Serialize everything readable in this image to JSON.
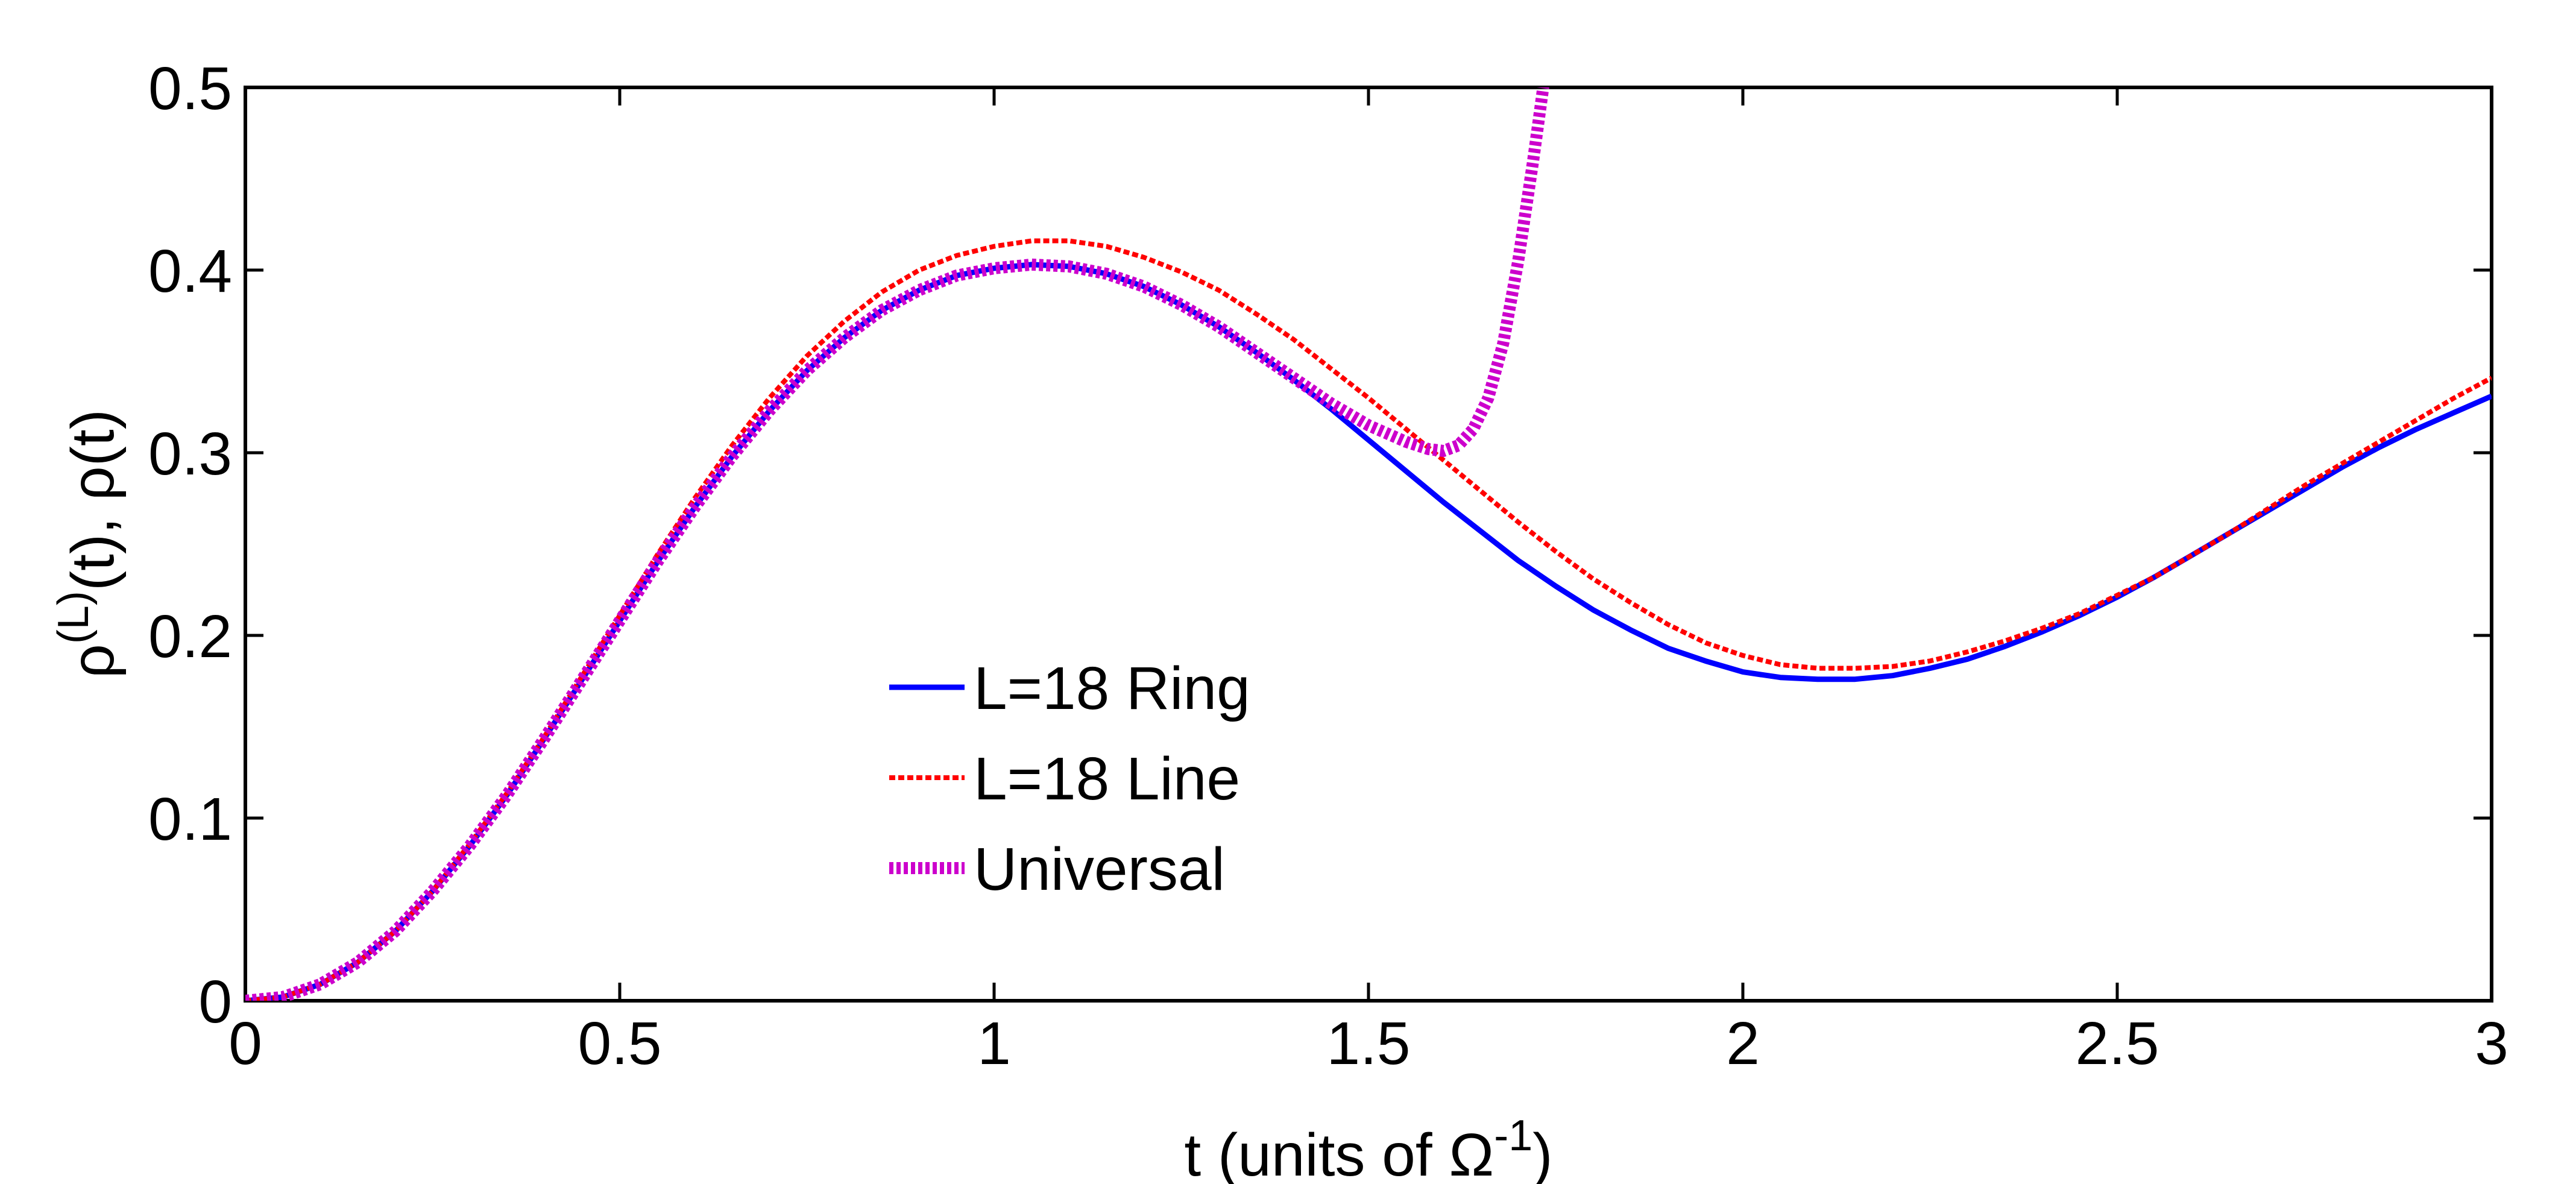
{
  "chart_data": {
    "type": "line",
    "title": "",
    "xlabel": "t (units of Ω⁻¹)",
    "xlabel_parts": {
      "base": "t (units of Ω",
      "sup": "-1",
      "tail": ")"
    },
    "ylabel": "ρ⁽ᴸ⁾(t), ρ(t)",
    "ylabel_parts": {
      "rho1": "ρ",
      "sup": "(L)",
      "tail": "(t), ρ(t)"
    },
    "xlim": [
      0,
      3
    ],
    "ylim": [
      0,
      0.5
    ],
    "xticks": [
      0,
      0.5,
      1,
      1.5,
      2,
      2.5,
      3
    ],
    "xtick_labels": [
      "0",
      "0.5",
      "1",
      "1.5",
      "2",
      "2.5",
      "3"
    ],
    "yticks": [
      0,
      0.1,
      0.2,
      0.3,
      0.4,
      0.5
    ],
    "ytick_labels": [
      "0",
      "0.1",
      "0.2",
      "0.3",
      "0.4",
      "0.5"
    ],
    "grid": false,
    "legend_position": "lower-center-left",
    "series": [
      {
        "name": "L=18 Ring",
        "color": "#0000ff",
        "style": "solid",
        "x": [
          0,
          0.05,
          0.1,
          0.15,
          0.2,
          0.25,
          0.3,
          0.35,
          0.4,
          0.45,
          0.5,
          0.55,
          0.6,
          0.65,
          0.7,
          0.75,
          0.8,
          0.85,
          0.9,
          0.95,
          1.0,
          1.05,
          1.1,
          1.15,
          1.2,
          1.25,
          1.3,
          1.35,
          1.4,
          1.45,
          1.5,
          1.55,
          1.6,
          1.65,
          1.7,
          1.75,
          1.8,
          1.85,
          1.9,
          1.95,
          2.0,
          2.05,
          2.1,
          2.15,
          2.2,
          2.25,
          2.3,
          2.35,
          2.4,
          2.45,
          2.5,
          2.55,
          2.6,
          2.65,
          2.7,
          2.75,
          2.8,
          2.85,
          2.9,
          2.95,
          3.0
        ],
        "values": [
          0,
          0.002,
          0.009,
          0.021,
          0.038,
          0.06,
          0.085,
          0.113,
          0.144,
          0.176,
          0.208,
          0.24,
          0.27,
          0.298,
          0.323,
          0.345,
          0.363,
          0.378,
          0.389,
          0.397,
          0.401,
          0.403,
          0.402,
          0.398,
          0.391,
          0.381,
          0.369,
          0.355,
          0.34,
          0.324,
          0.307,
          0.29,
          0.273,
          0.257,
          0.241,
          0.227,
          0.214,
          0.203,
          0.193,
          0.186,
          0.18,
          0.177,
          0.176,
          0.176,
          0.178,
          0.182,
          0.187,
          0.194,
          0.202,
          0.211,
          0.221,
          0.232,
          0.244,
          0.256,
          0.268,
          0.28,
          0.292,
          0.303,
          0.313,
          0.322,
          0.331
        ]
      },
      {
        "name": "L=18 Line",
        "color": "#ff0000",
        "style": "dotted",
        "x": [
          0,
          0.05,
          0.1,
          0.15,
          0.2,
          0.25,
          0.3,
          0.35,
          0.4,
          0.45,
          0.5,
          0.55,
          0.6,
          0.65,
          0.7,
          0.75,
          0.8,
          0.85,
          0.9,
          0.95,
          1.0,
          1.05,
          1.1,
          1.15,
          1.2,
          1.25,
          1.3,
          1.35,
          1.4,
          1.45,
          1.5,
          1.55,
          1.6,
          1.65,
          1.7,
          1.75,
          1.8,
          1.85,
          1.9,
          1.95,
          2.0,
          2.05,
          2.1,
          2.15,
          2.2,
          2.25,
          2.3,
          2.35,
          2.4,
          2.45,
          2.5,
          2.55,
          2.6,
          2.65,
          2.7,
          2.75,
          2.8,
          2.85,
          2.9,
          2.95,
          3.0
        ],
        "values": [
          0,
          0.002,
          0.009,
          0.021,
          0.038,
          0.06,
          0.086,
          0.114,
          0.145,
          0.178,
          0.211,
          0.244,
          0.275,
          0.304,
          0.33,
          0.353,
          0.372,
          0.388,
          0.4,
          0.408,
          0.413,
          0.416,
          0.416,
          0.413,
          0.407,
          0.399,
          0.389,
          0.376,
          0.362,
          0.346,
          0.33,
          0.313,
          0.296,
          0.279,
          0.262,
          0.246,
          0.231,
          0.218,
          0.206,
          0.196,
          0.189,
          0.184,
          0.182,
          0.182,
          0.183,
          0.186,
          0.191,
          0.197,
          0.204,
          0.212,
          0.222,
          0.232,
          0.244,
          0.256,
          0.269,
          0.282,
          0.294,
          0.306,
          0.318,
          0.33,
          0.341
        ]
      },
      {
        "name": "Universal",
        "color": "#cc00cc",
        "style": "thick-dotted",
        "x": [
          0,
          0.05,
          0.1,
          0.15,
          0.2,
          0.25,
          0.3,
          0.35,
          0.4,
          0.45,
          0.5,
          0.55,
          0.6,
          0.65,
          0.7,
          0.75,
          0.8,
          0.85,
          0.9,
          0.95,
          1.0,
          1.05,
          1.1,
          1.15,
          1.2,
          1.25,
          1.3,
          1.35,
          1.4,
          1.45,
          1.5,
          1.55,
          1.58,
          1.6,
          1.62,
          1.64,
          1.66,
          1.68,
          1.7,
          1.72,
          1.735
        ],
        "values": [
          0,
          0.002,
          0.009,
          0.021,
          0.038,
          0.06,
          0.085,
          0.113,
          0.144,
          0.176,
          0.208,
          0.24,
          0.27,
          0.298,
          0.323,
          0.345,
          0.363,
          0.378,
          0.389,
          0.397,
          0.401,
          0.403,
          0.402,
          0.398,
          0.391,
          0.381,
          0.369,
          0.355,
          0.341,
          0.327,
          0.315,
          0.306,
          0.302,
          0.301,
          0.304,
          0.313,
          0.33,
          0.36,
          0.405,
          0.46,
          0.505
        ]
      }
    ]
  }
}
